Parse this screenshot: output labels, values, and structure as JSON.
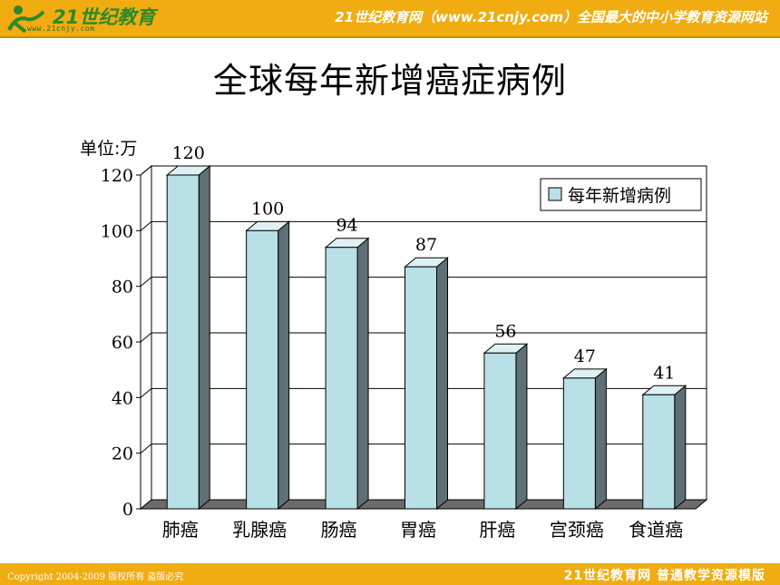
{
  "header": {
    "logo_text": "21世纪教育",
    "logo_url": "www.21cnjy.com",
    "site_name": "21世纪教育网（www.21cnjy.com）全国最大的中小学教育资源网站"
  },
  "footer": {
    "copyright": "Copyright 2004-2009 版权所有 盗版必究",
    "brand": "21世纪教育网    普通教学资源模版"
  },
  "colors": {
    "bar_bar": "#f0ac10",
    "bar_front": "#b9e0e6",
    "bar_side": "#5e7073",
    "bar_top": "#dff1f4"
  },
  "chart_data": {
    "type": "bar",
    "title": "全球每年新增癌症病例",
    "ylabel": "单位:万",
    "categories": [
      "肺癌",
      "乳腺癌",
      "肠癌",
      "胃癌",
      "肝癌",
      "宫颈癌",
      "食道癌"
    ],
    "series": [
      {
        "name": "每年新增病例",
        "values": [
          120,
          100,
          94,
          87,
          56,
          47,
          41
        ]
      }
    ],
    "ylim": [
      0,
      120
    ],
    "yticks": [
      0,
      20,
      40,
      60,
      80,
      100,
      120
    ],
    "grid": true,
    "legend": "top-right",
    "data_labels": true
  }
}
